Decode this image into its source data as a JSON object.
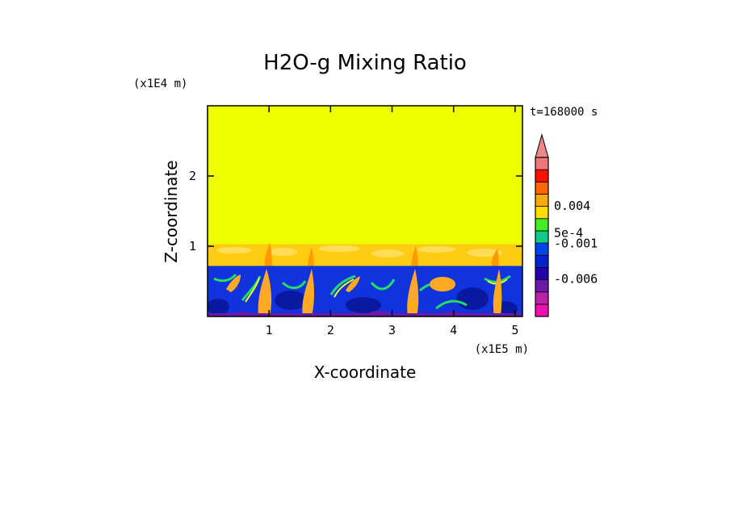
{
  "chart_data": {
    "type": "heatmap",
    "title": "H2O-g Mixing Ratio",
    "xlabel": "X-coordinate",
    "ylabel": "Z-coordinate",
    "x_scale_label": "(x1E5 m)",
    "y_scale_label": "(x1E4 m)",
    "time_label": "t=168000 s",
    "xlim": [
      0,
      5.12
    ],
    "ylim": [
      0,
      3.0
    ],
    "x_ticks": [
      {
        "value": 1,
        "label": "1"
      },
      {
        "value": 2,
        "label": "2"
      },
      {
        "value": 3,
        "label": "3"
      },
      {
        "value": 4,
        "label": "4"
      },
      {
        "value": 5,
        "label": "5"
      }
    ],
    "y_ticks": [
      {
        "value": 1,
        "label": "1"
      },
      {
        "value": 2,
        "label": "2"
      }
    ],
    "colorbar": {
      "colors": [
        "#ee11aa",
        "#bb22aa",
        "#6a1aa6",
        "#2200aa",
        "#0022cc",
        "#0044ee",
        "#11cc88",
        "#44ee22",
        "#ffdd00",
        "#ffaa11",
        "#ff6600",
        "#ff1100",
        "#ee7777"
      ],
      "extend_color": "#ee8888",
      "labels": [
        {
          "label": "0.004",
          "pos": 0.695
        },
        {
          "label": "5e-4",
          "pos": 0.525
        },
        {
          "label": "-0.001",
          "pos": 0.46
        },
        {
          "label": "-0.006",
          "pos": 0.235
        }
      ]
    },
    "regions": {
      "upper_color": "#eeff00",
      "band_top": 1.03,
      "band_color": "#ffcc11",
      "boundary_layer_top": 0.72,
      "boundary_layer_color": "#1133dd"
    }
  }
}
